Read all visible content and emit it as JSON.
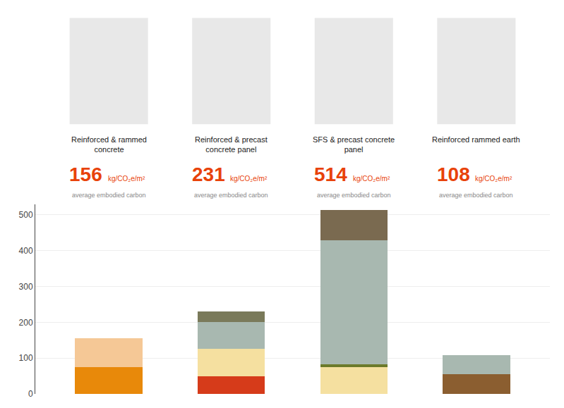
{
  "chart_data": {
    "type": "bar",
    "stacked": true,
    "categories": [
      "Reinforced & rammed\nconcrete",
      "Reinforced & precast\nconcrete panel",
      "SFS & precast concrete\npanel",
      "Reinforced rammed earth"
    ],
    "series": [
      {
        "values": [
          75,
          50,
          75,
          55
        ],
        "colors": [
          "#E8890A",
          "#D63B1A",
          "#F5E0A0",
          "#8B5E30"
        ]
      },
      {
        "values": [
          81,
          75,
          8,
          53
        ],
        "colors": [
          "#F5C896",
          "#F5E0A0",
          "#6B7A2A",
          "#A8B8B0"
        ]
      },
      {
        "values": [
          null,
          76,
          345,
          null
        ],
        "colors": [
          null,
          "#A8B8B0",
          "#A8B8B0",
          null
        ]
      },
      {
        "values": [
          null,
          30,
          86,
          null
        ],
        "colors": [
          null,
          "#7A7A5A",
          "#7A6A50",
          null
        ]
      }
    ],
    "totals": [
      156,
      231,
      514,
      108
    ],
    "total_unit": "kg/CO₂e/m²",
    "total_note": "average embodied carbon",
    "total_color": "#E8420A",
    "ylim": [
      0,
      530
    ],
    "yticks": [
      0,
      100,
      200,
      300,
      400,
      500
    ],
    "grid": true,
    "tick_labels": "y"
  }
}
